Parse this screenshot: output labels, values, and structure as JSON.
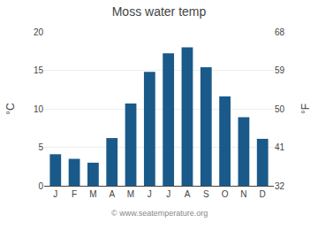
{
  "chart_data": {
    "type": "bar",
    "title": "Moss water temp",
    "categories": [
      "J",
      "F",
      "M",
      "A",
      "M",
      "J",
      "J",
      "A",
      "S",
      "O",
      "N",
      "D"
    ],
    "values": [
      4.1,
      3.5,
      3.0,
      6.2,
      10.7,
      14.8,
      17.2,
      18.0,
      15.4,
      11.6,
      8.9,
      6.1
    ],
    "color": "#1a5a8a",
    "y_label": "°C",
    "y2_label": "°F",
    "ylim": [
      0,
      20
    ],
    "yticks": [
      0,
      5,
      10,
      15,
      20
    ],
    "y2lim": [
      32,
      68
    ],
    "y2ticks": [
      32,
      41,
      50,
      59,
      68
    ],
    "grid": true,
    "annotations": [
      "© www.seatemperature.org"
    ]
  }
}
